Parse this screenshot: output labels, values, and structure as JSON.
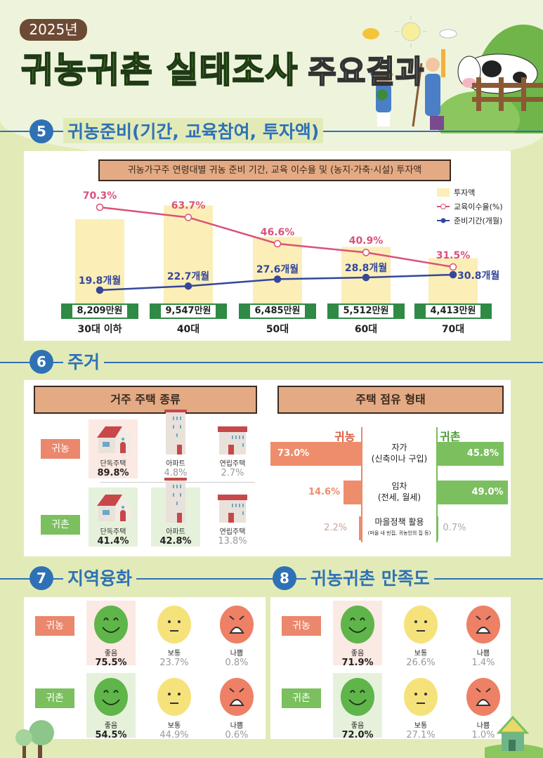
{
  "header": {
    "year": "2025년",
    "title_green": "귀농귀촌 실태조사",
    "title_white": "주요결과"
  },
  "section5": {
    "number": "5",
    "title": "귀농준비(기간, 교육참여, 투자액)"
  },
  "chart_data": {
    "type": "bar+line",
    "title": "귀농가구주 연령대별 귀농 준비 기간, 교육 이수율 및 (농지·가축·시설) 투자액",
    "categories": [
      "30대 이하",
      "40대",
      "50대",
      "60대",
      "70대"
    ],
    "series": [
      {
        "name": "투자액",
        "type": "bar",
        "values": [
          8209,
          9547,
          6485,
          5512,
          4413
        ],
        "labels": [
          "8,209만원",
          "9,547만원",
          "6,485만원",
          "5,512만원",
          "4,413만원"
        ],
        "color": "#fbeeb6"
      },
      {
        "name": "교육이수율(%)",
        "type": "line",
        "values": [
          70.3,
          63.7,
          46.6,
          40.9,
          31.5
        ],
        "labels": [
          "70.3%",
          "63.7%",
          "46.6%",
          "40.9%",
          "31.5%"
        ],
        "color": "#d9527a",
        "marker": "hollow-circle"
      },
      {
        "name": "준비기간(개월)",
        "type": "line",
        "values": [
          19.8,
          22.7,
          27.6,
          28.8,
          30.8
        ],
        "labels": [
          "19.8개월",
          "22.7개월",
          "27.6개월",
          "28.8개월",
          "30.8개월"
        ],
        "color": "#34479a",
        "marker": "filled-circle"
      }
    ],
    "legend": "top-right",
    "grid": false
  },
  "section6": {
    "number": "6",
    "title": "주거",
    "housing": {
      "title": "거주 주택 종류",
      "rows": [
        {
          "label": "귀농",
          "items": [
            {
              "icon": "house",
              "name": "단독주택",
              "value": "89.8%",
              "top": true
            },
            {
              "icon": "apartment",
              "name": "아파트",
              "value": "4.8%",
              "top": false
            },
            {
              "icon": "rowhouse",
              "name": "연립주택",
              "value": "2.7%",
              "top": false
            }
          ]
        },
        {
          "label": "귀촌",
          "items": [
            {
              "icon": "house",
              "name": "단독주택",
              "value": "41.4%",
              "top": true
            },
            {
              "icon": "apartment",
              "name": "아파트",
              "value": "42.8%",
              "top": true
            },
            {
              "icon": "rowhouse",
              "name": "연립주택",
              "value": "13.8%",
              "top": false
            }
          ]
        }
      ]
    },
    "tenure": {
      "title": "주택 점유 형태",
      "left_label": "귀농",
      "right_label": "귀촌",
      "rows": [
        {
          "label": "자가",
          "sub": "(신축이나 구입)",
          "nong": 73.0,
          "nong_label": "73.0%",
          "chon": 45.8,
          "chon_label": "45.8%"
        },
        {
          "label": "임차",
          "sub": "(전세, 월세)",
          "nong": 14.6,
          "nong_label": "14.6%",
          "chon": 49.0,
          "chon_label": "49.0%"
        },
        {
          "label": "마을정책 활용",
          "sub": "(마을 내 빈집, 귀농인의 집 등)",
          "nong": 2.2,
          "nong_label": "2.2%",
          "chon": 0.7,
          "chon_label": "0.7%"
        }
      ]
    }
  },
  "section7": {
    "number": "7",
    "title": "지역융화",
    "rows": [
      {
        "label": "귀농",
        "items": [
          {
            "face": "good",
            "name": "좋음",
            "value": "75.5%"
          },
          {
            "face": "neutral",
            "name": "보통",
            "value": "23.7%"
          },
          {
            "face": "bad",
            "name": "나쁨",
            "value": "0.8%"
          }
        ]
      },
      {
        "label": "귀촌",
        "items": [
          {
            "face": "good",
            "name": "좋음",
            "value": "54.5%"
          },
          {
            "face": "neutral",
            "name": "보통",
            "value": "44.9%"
          },
          {
            "face": "bad",
            "name": "나쁨",
            "value": "0.6%"
          }
        ]
      }
    ]
  },
  "section8": {
    "number": "8",
    "title": "귀농귀촌 만족도",
    "rows": [
      {
        "label": "귀농",
        "items": [
          {
            "face": "good",
            "name": "좋음",
            "value": "71.9%"
          },
          {
            "face": "neutral",
            "name": "보통",
            "value": "26.6%"
          },
          {
            "face": "bad",
            "name": "나쁨",
            "value": "1.4%"
          }
        ]
      },
      {
        "label": "귀촌",
        "items": [
          {
            "face": "good",
            "name": "좋음",
            "value": "72.0%"
          },
          {
            "face": "neutral",
            "name": "보통",
            "value": "27.1%"
          },
          {
            "face": "bad",
            "name": "나쁨",
            "value": "1.0%"
          }
        ]
      }
    ]
  },
  "colors": {
    "blue": "#2f71b5",
    "nong": "#ea876c",
    "chon": "#7bbf5f",
    "wood": "#e3aa84"
  }
}
